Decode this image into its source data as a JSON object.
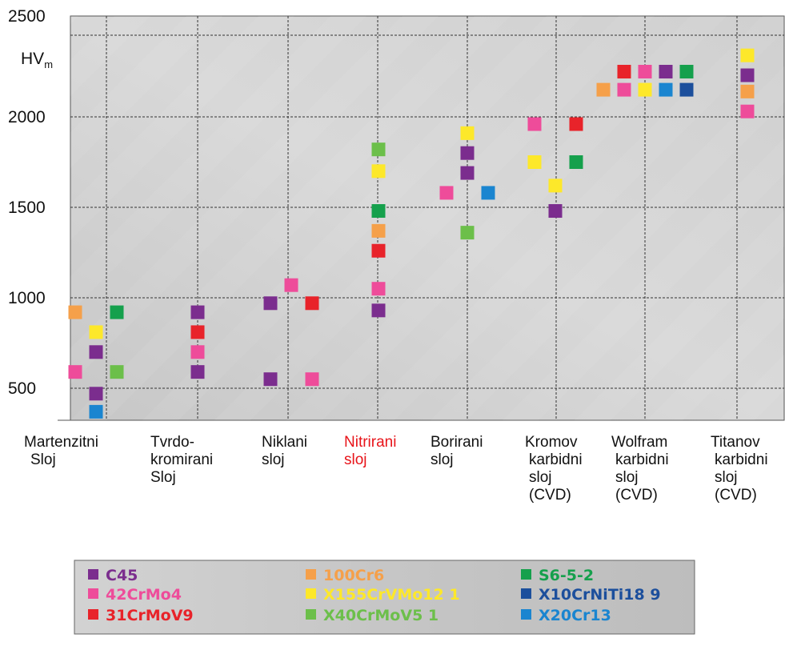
{
  "chart_data": {
    "type": "scatter",
    "ylabel": "HV",
    "ylabel_sub": "m",
    "ylim": [
      330,
      2500
    ],
    "yticks": [
      500,
      1000,
      1500,
      2000,
      2500
    ],
    "grid": true,
    "categories": [
      {
        "lines": [
          "Martenzitni",
          "Sloj"
        ]
      },
      {
        "lines": [
          "Tvrdo-",
          "kromirani",
          "Sloj"
        ]
      },
      {
        "lines": [
          "Niklani",
          "sloj"
        ]
      },
      {
        "lines": [
          "Nitrirani",
          "sloj"
        ],
        "highlight": true
      },
      {
        "lines": [
          "Borirani",
          "sloj"
        ]
      },
      {
        "lines": [
          "Kromov",
          "karbidni",
          "sloj",
          "(CVD)"
        ]
      },
      {
        "lines": [
          "Wolfram",
          "karbidni",
          "sloj",
          "(CVD)"
        ]
      },
      {
        "lines": [
          "Titanov",
          "karbidni",
          "sloj",
          "(CVD)"
        ]
      }
    ],
    "series": [
      {
        "name": "C45",
        "color": "#7b2d8e",
        "points": [
          {
            "cat": 0,
            "off": 0,
            "y": 700
          },
          {
            "cat": 0,
            "off": 0,
            "y": 470
          },
          {
            "cat": 1,
            "off": 0,
            "y": 920
          },
          {
            "cat": 1,
            "off": 0,
            "y": 590
          },
          {
            "cat": 2,
            "off": -1,
            "y": 970
          },
          {
            "cat": 2,
            "off": -1,
            "y": 550
          },
          {
            "cat": 3,
            "off": 0,
            "y": 930
          },
          {
            "cat": 4,
            "off": 0,
            "y": 1800
          },
          {
            "cat": 4,
            "off": 0,
            "y": 1690
          },
          {
            "cat": 5,
            "off": 0,
            "y": 1480
          },
          {
            "cat": 6,
            "off": 1,
            "y": 2250
          },
          {
            "cat": 7,
            "off": 0,
            "y": 2230
          }
        ]
      },
      {
        "name": "42CrMo4",
        "color": "#ee4c9a",
        "points": [
          {
            "cat": 0,
            "off": -1,
            "y": 590
          },
          {
            "cat": 1,
            "off": 0,
            "y": 700
          },
          {
            "cat": 2,
            "off": 0,
            "y": 1070
          },
          {
            "cat": 2,
            "off": 1,
            "y": 550
          },
          {
            "cat": 3,
            "off": 0,
            "y": 1050
          },
          {
            "cat": 4,
            "off": -1,
            "y": 1580
          },
          {
            "cat": 5,
            "off": -1,
            "y": 1960
          },
          {
            "cat": 6,
            "off": 0,
            "y": 2250
          },
          {
            "cat": 6,
            "off": -1,
            "y": 2150
          },
          {
            "cat": 7,
            "off": 0,
            "y": 2030
          }
        ]
      },
      {
        "name": "31CrMoV9",
        "color": "#e8232a",
        "points": [
          {
            "cat": 1,
            "off": 0,
            "y": 810
          },
          {
            "cat": 2,
            "off": 1,
            "y": 970
          },
          {
            "cat": 3,
            "off": 0,
            "y": 1260
          },
          {
            "cat": 5,
            "off": 1,
            "y": 1960
          },
          {
            "cat": 6,
            "off": -1,
            "y": 2250
          }
        ]
      },
      {
        "name": "100Cr6",
        "color": "#f5a04a",
        "points": [
          {
            "cat": 0,
            "off": -1,
            "y": 920
          },
          {
            "cat": 3,
            "off": 0,
            "y": 1370
          },
          {
            "cat": 6,
            "off": -2,
            "y": 2150
          },
          {
            "cat": 7,
            "off": 0,
            "y": 2140
          }
        ]
      },
      {
        "name": "X155CrVMo12 1",
        "color": "#fde82a",
        "points": [
          {
            "cat": 0,
            "off": 0,
            "y": 810
          },
          {
            "cat": 3,
            "off": 0,
            "y": 1700
          },
          {
            "cat": 4,
            "off": 0,
            "y": 1910
          },
          {
            "cat": 5,
            "off": -1,
            "y": 1750
          },
          {
            "cat": 5,
            "off": 0,
            "y": 1620
          },
          {
            "cat": 6,
            "off": 0,
            "y": 2150
          },
          {
            "cat": 7,
            "off": 0,
            "y": 2340
          }
        ]
      },
      {
        "name": "X40CrMoV5 1",
        "color": "#6cbf4a",
        "points": [
          {
            "cat": 0,
            "off": 1,
            "y": 590
          },
          {
            "cat": 3,
            "off": 0,
            "y": 1820
          },
          {
            "cat": 4,
            "off": 0,
            "y": 1360
          }
        ]
      },
      {
        "name": "S6-5-2",
        "color": "#15a04c",
        "points": [
          {
            "cat": 0,
            "off": 1,
            "y": 920
          },
          {
            "cat": 3,
            "off": 0,
            "y": 1480
          },
          {
            "cat": 5,
            "off": 1,
            "y": 1750
          },
          {
            "cat": 6,
            "off": 2,
            "y": 2250
          }
        ]
      },
      {
        "name": "X10CrNiTi18 9",
        "color": "#1c4f9c",
        "points": [
          {
            "cat": 6,
            "off": 2,
            "y": 2150
          }
        ]
      },
      {
        "name": "X20Cr13",
        "color": "#1a85d0",
        "points": [
          {
            "cat": 0,
            "off": 0,
            "y": 370
          },
          {
            "cat": 4,
            "off": 1,
            "y": 1580
          },
          {
            "cat": 6,
            "off": 1,
            "y": 2150
          }
        ]
      }
    ],
    "legend": {
      "placement": "bottom",
      "columns": [
        [
          "C45",
          "42CrMo4",
          "31CrMoV9"
        ],
        [
          "100Cr6",
          "X155CrVMo12 1",
          "X40CrMoV5 1"
        ],
        [
          "S6-5-2",
          "X10CrNiTi18 9",
          "X20Cr13"
        ]
      ]
    }
  }
}
